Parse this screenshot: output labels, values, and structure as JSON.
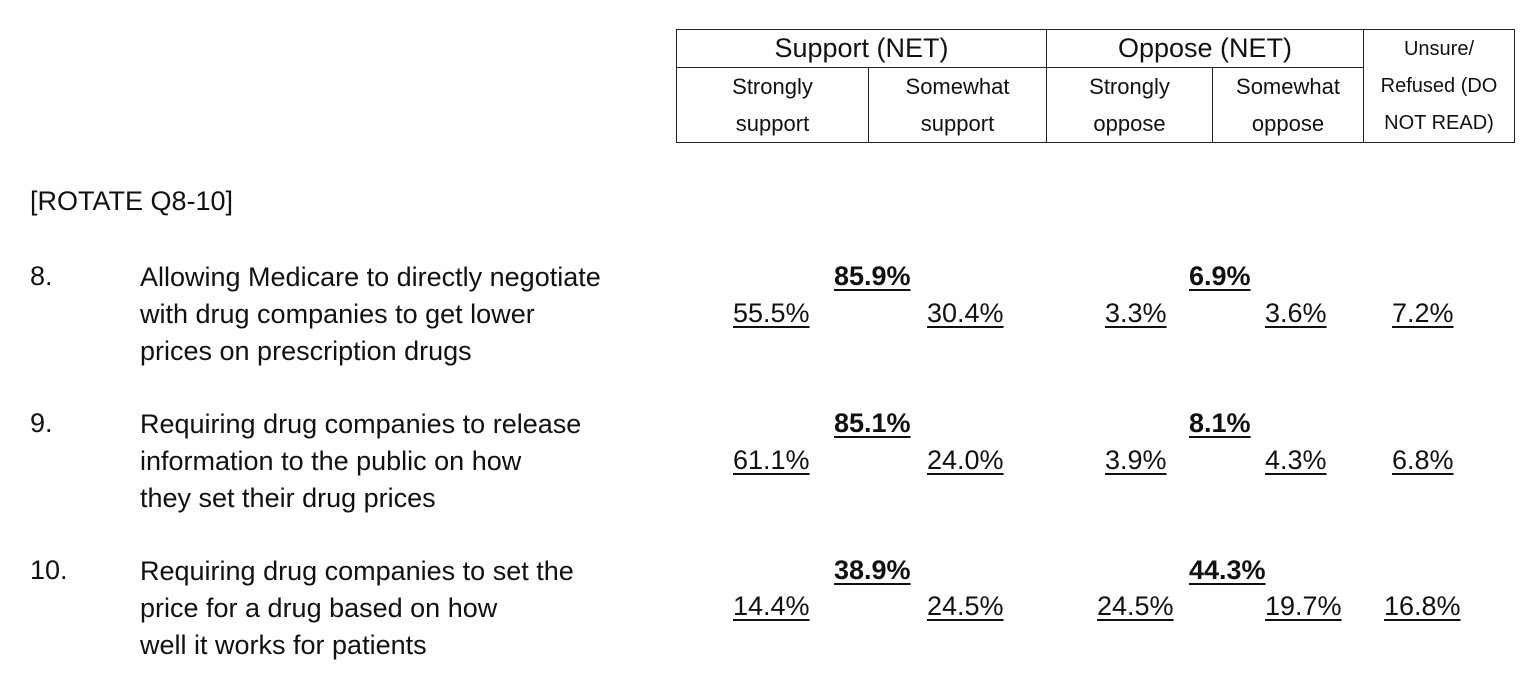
{
  "header": {
    "support_net": "Support (NET)",
    "oppose_net": "Oppose (NET)",
    "unsure": [
      "Unsure/",
      "Refused (DO",
      "NOT READ)"
    ],
    "strongly_support": [
      "Strongly",
      "support"
    ],
    "somewhat_support": [
      "Somewhat",
      "support"
    ],
    "strongly_oppose": [
      "Strongly",
      "oppose"
    ],
    "somewhat_oppose": [
      "Somewhat",
      "oppose"
    ]
  },
  "rotate_note": "[ROTATE Q8-10]",
  "questions": [
    {
      "number": "8.",
      "lines": [
        "Allowing Medicare to directly negotiate",
        "with drug companies to get lower",
        "prices  on prescription drugs"
      ],
      "support_net": "85.9%",
      "strongly_support": "55.5%",
      "somewhat_support": "30.4%",
      "oppose_net": "6.9%",
      "strongly_oppose": "3.3%",
      "somewhat_oppose": "3.6%",
      "unsure": "7.2%"
    },
    {
      "number": "9.",
      "lines": [
        "Requiring drug companies to release",
        "information to the public on how",
        "they set their drug prices"
      ],
      "support_net": "85.1%",
      "strongly_support": "61.1%",
      "somewhat_support": "24.0%",
      "oppose_net": "8.1%",
      "strongly_oppose": "3.9%",
      "somewhat_oppose": "4.3%",
      "unsure": "6.8%"
    },
    {
      "number": "10.",
      "lines": [
        "Requiring drug companies to set the",
        "price for a drug based on how",
        "well it works for patients"
      ],
      "support_net": "38.9%",
      "strongly_support": "14.4%",
      "somewhat_support": "24.5%",
      "oppose_net": "44.3%",
      "strongly_oppose": "24.5%",
      "somewhat_oppose": "19.7%",
      "unsure": "16.8%"
    }
  ]
}
